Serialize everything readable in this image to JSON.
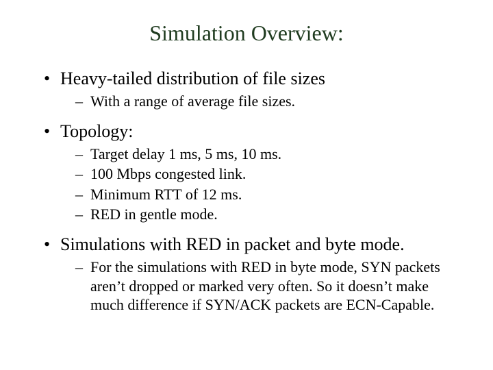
{
  "title_color": "#1f3b1f",
  "text_color": "#000000",
  "background_color": "#ffffff",
  "title_fontsize": 32,
  "level1_fontsize": 26,
  "level2_fontsize": 22,
  "slide": {
    "title": "Simulation Overview:",
    "bullets": [
      {
        "text": "Heavy-tailed distribution of file sizes",
        "sub": [
          "With a range of average file sizes."
        ]
      },
      {
        "text": "Topology:",
        "sub": [
          "Target delay 1 ms, 5 ms, 10 ms.",
          "100 Mbps congested link.",
          "Minimum RTT of 12 ms.",
          "RED in gentle mode."
        ]
      },
      {
        "text": "Simulations with RED in packet and byte mode.",
        "sub": [
          "For the simulations with RED in byte mode, SYN packets aren’t dropped or marked very often.  So it doesn’t make much difference if SYN/ACK packets are ECN-Capable."
        ]
      }
    ]
  }
}
